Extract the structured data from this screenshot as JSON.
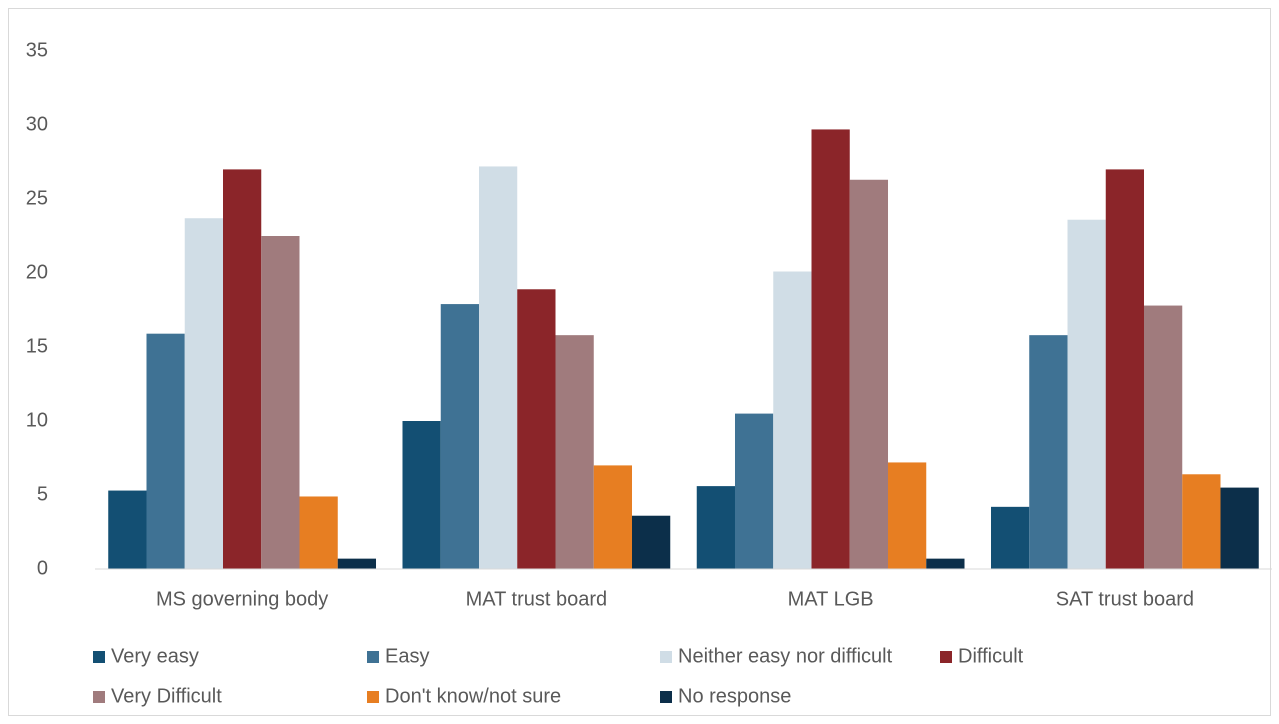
{
  "chart_data": {
    "type": "bar",
    "categories": [
      "MS governing body",
      "MAT trust board",
      "MAT LGB",
      "SAT trust board"
    ],
    "series": [
      {
        "name": "Very easy",
        "color": "#134f73",
        "values": [
          5.3,
          10.0,
          5.6,
          4.2
        ]
      },
      {
        "name": "Easy",
        "color": "#3f7294",
        "values": [
          15.9,
          17.9,
          10.5,
          15.8
        ]
      },
      {
        "name": "Neither easy nor difficult",
        "color": "#d0dde6",
        "values": [
          23.7,
          27.2,
          20.1,
          23.6
        ]
      },
      {
        "name": "Difficult",
        "color": "#8b2529",
        "values": [
          27.0,
          18.9,
          29.7,
          27.0
        ]
      },
      {
        "name": "Very Difficult",
        "color": "#a07b7d",
        "values": [
          22.5,
          15.8,
          26.3,
          17.8
        ]
      },
      {
        "name": "Don't know/not sure",
        "color": "#e77e22",
        "values": [
          4.9,
          7.0,
          7.2,
          6.4
        ]
      },
      {
        "name": "No response",
        "color": "#0c2f4a",
        "values": [
          0.7,
          3.6,
          0.7,
          5.5
        ]
      }
    ],
    "ylim": [
      0,
      35
    ],
    "yticks": [
      0,
      5,
      10,
      15,
      20,
      25,
      30,
      35
    ],
    "grid": false,
    "legend": "bottom"
  }
}
